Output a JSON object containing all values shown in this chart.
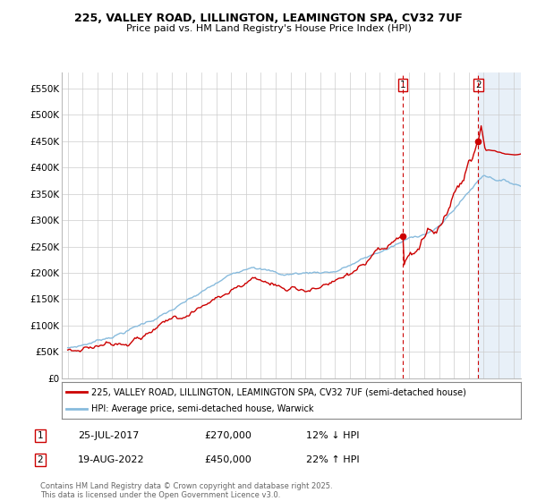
{
  "title_line1": "225, VALLEY ROAD, LILLINGTON, LEAMINGTON SPA, CV32 7UF",
  "title_line2": "Price paid vs. HM Land Registry's House Price Index (HPI)",
  "legend_line1": "225, VALLEY ROAD, LILLINGTON, LEAMINGTON SPA, CV32 7UF (semi-detached house)",
  "legend_line2": "HPI: Average price, semi-detached house, Warwick",
  "footer": "Contains HM Land Registry data © Crown copyright and database right 2025.\nThis data is licensed under the Open Government Licence v3.0.",
  "annotation1_num": "1",
  "annotation1_date": "25-JUL-2017",
  "annotation1_price": "£270,000",
  "annotation1_hpi": "12% ↓ HPI",
  "annotation2_num": "2",
  "annotation2_date": "19-AUG-2022",
  "annotation2_price": "£450,000",
  "annotation2_hpi": "22% ↑ HPI",
  "color_property": "#cc0000",
  "color_hpi": "#88bbdd",
  "color_vline": "#cc0000",
  "color_shade": "#e8f0f8",
  "ylim_min": 0,
  "ylim_max": 580000,
  "yticks": [
    0,
    50000,
    100000,
    150000,
    200000,
    250000,
    300000,
    350000,
    400000,
    450000,
    500000,
    550000
  ],
  "ytick_labels": [
    "£0",
    "£50K",
    "£100K",
    "£150K",
    "£200K",
    "£250K",
    "£300K",
    "£350K",
    "£400K",
    "£450K",
    "£500K",
    "£550K"
  ],
  "sale1_year": 2017.56,
  "sale1_price": 270000,
  "sale2_year": 2022.63,
  "sale2_price": 450000,
  "xmin": 1995,
  "xmax": 2025.3,
  "background_color": "#ffffff",
  "grid_color": "#cccccc"
}
